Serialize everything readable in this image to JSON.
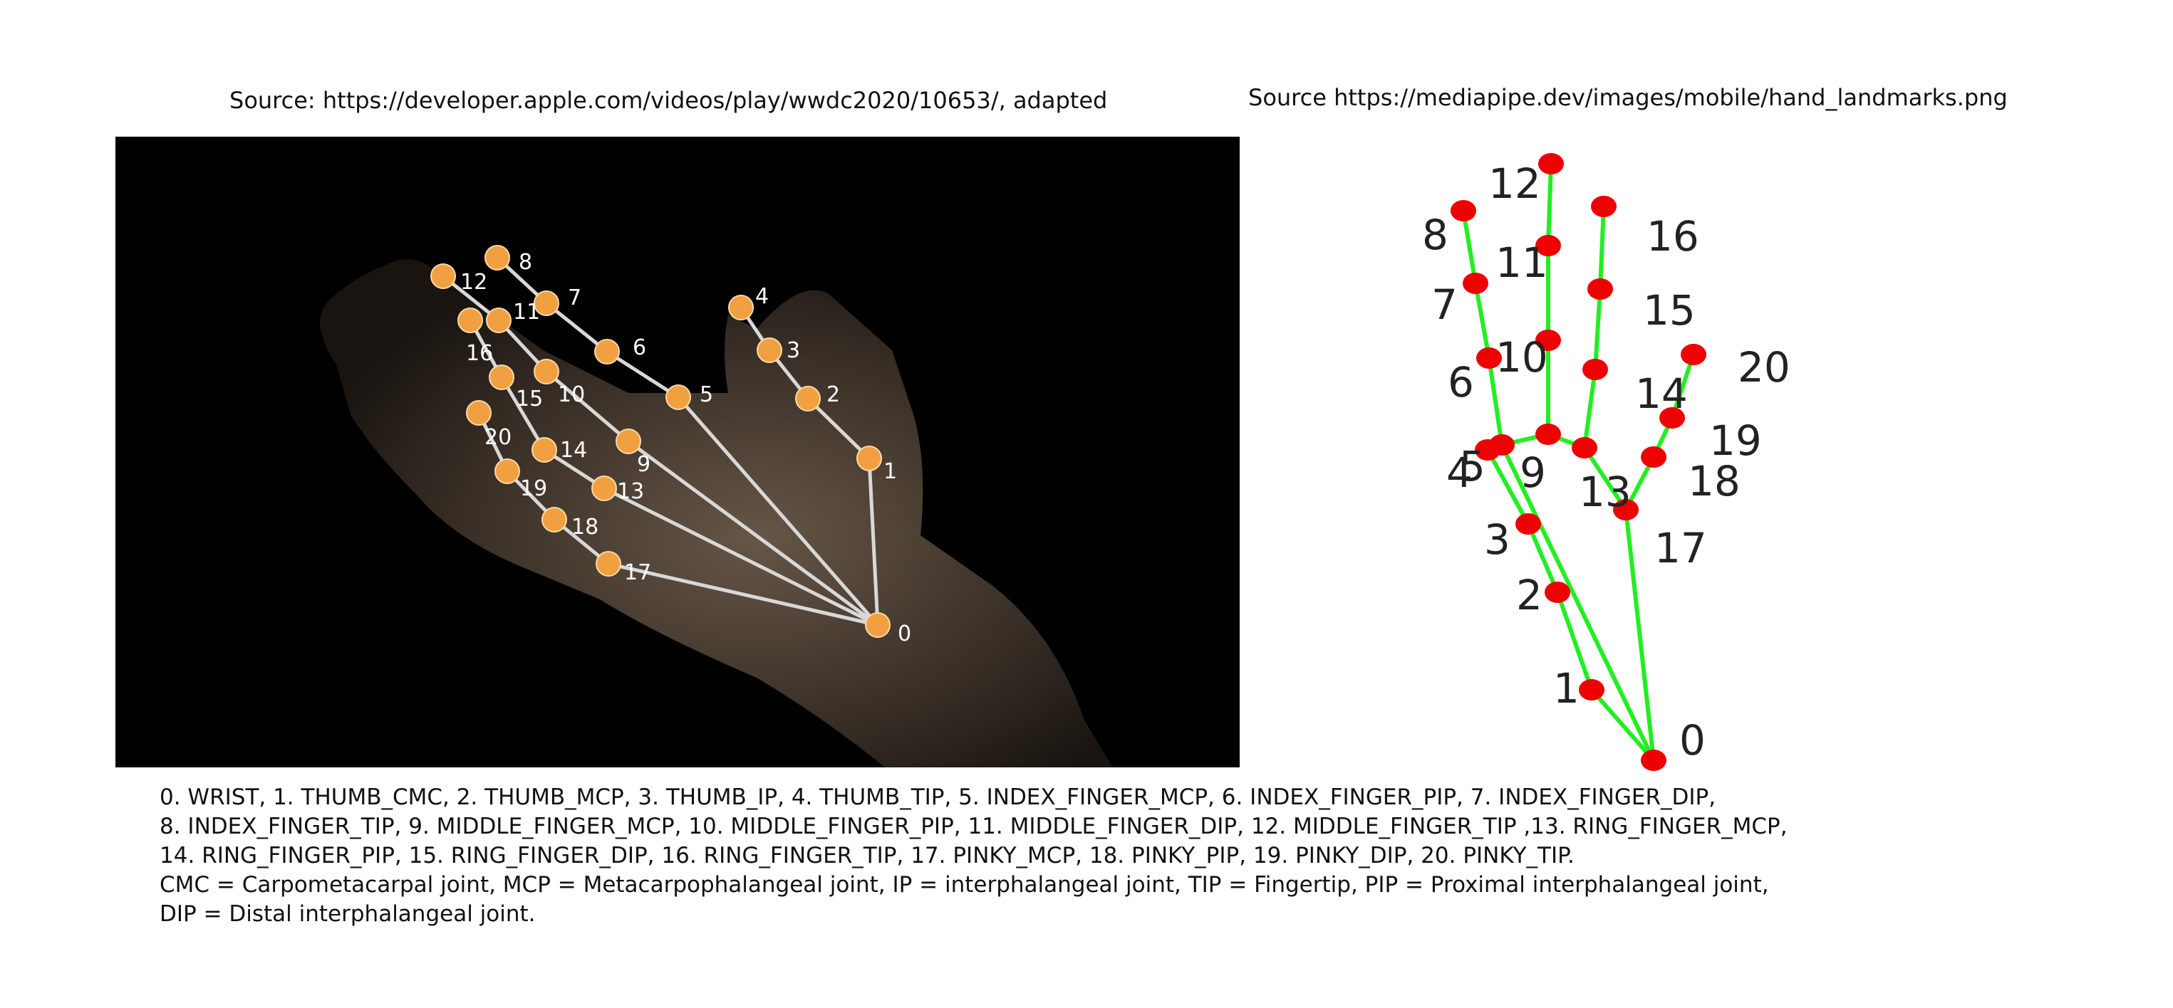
{
  "captions": {
    "left": "Source: https://developer.apple.com/videos/play/wwdc2020/10653/, adapted",
    "right": "Source https://mediapipe.dev/images/mobile/hand_landmarks.png"
  },
  "landmark_labels": [
    "0",
    "1",
    "2",
    "3",
    "4",
    "5",
    "6",
    "7",
    "8",
    "9",
    "10",
    "11",
    "12",
    "13",
    "14",
    "15",
    "16",
    "17",
    "18",
    "19",
    "20"
  ],
  "connections": [
    [
      0,
      1
    ],
    [
      1,
      2
    ],
    [
      2,
      3
    ],
    [
      3,
      4
    ],
    [
      0,
      5
    ],
    [
      5,
      6
    ],
    [
      6,
      7
    ],
    [
      7,
      8
    ],
    [
      5,
      9
    ],
    [
      9,
      10
    ],
    [
      10,
      11
    ],
    [
      11,
      12
    ],
    [
      9,
      13
    ],
    [
      13,
      14
    ],
    [
      14,
      15
    ],
    [
      15,
      16
    ],
    [
      13,
      17
    ],
    [
      0,
      17
    ],
    [
      17,
      18
    ],
    [
      18,
      19
    ],
    [
      19,
      20
    ]
  ],
  "photo_connections": [
    [
      0,
      1
    ],
    [
      1,
      2
    ],
    [
      2,
      3
    ],
    [
      3,
      4
    ],
    [
      0,
      5
    ],
    [
      5,
      6
    ],
    [
      6,
      7
    ],
    [
      7,
      8
    ],
    [
      9,
      10
    ],
    [
      10,
      11
    ],
    [
      11,
      12
    ],
    [
      13,
      14
    ],
    [
      14,
      15
    ],
    [
      15,
      16
    ],
    [
      17,
      18
    ],
    [
      18,
      19
    ],
    [
      19,
      20
    ],
    [
      0,
      9
    ],
    [
      0,
      13
    ],
    [
      0,
      17
    ]
  ],
  "colors": {
    "photo_background": "#000000",
    "photo_joint": "#f0a040",
    "photo_line": "#d8d8d8",
    "photo_label": "#ffffff",
    "diagram_joint": "#ee0000",
    "diagram_line": "#22ee22",
    "diagram_label": "#222222"
  },
  "legend": {
    "line1": "0. WRIST, 1. THUMB_CMC, 2. THUMB_MCP, 3. THUMB_IP, 4. THUMB_TIP, 5. INDEX_FINGER_MCP, 6. INDEX_FINGER_PIP, 7. INDEX_FINGER_DIP,",
    "line2": "8. INDEX_FINGER_TIP, 9. MIDDLE_FINGER_MCP, 10. MIDDLE_FINGER_PIP, 11. MIDDLE_FINGER_DIP, 12. MIDDLE_FINGER_TIP ,13. RING_FINGER_MCP,",
    "line3": "14. RING_FINGER_PIP, 15. RING_FINGER_DIP, 16. RING_FINGER_TIP, 17. PINKY_MCP, 18. PINKY_PIP, 19. PINKY_DIP, 20. PINKY_TIP.",
    "line4": "CMC = Carpometacarpal joint, MCP = Metacarpophalangeal joint, IP = interphalangeal joint,  TIP = Fingertip, PIP =  Proximal interphalangeal joint,",
    "line5": "DIP = Distal interphalangeal joint."
  }
}
